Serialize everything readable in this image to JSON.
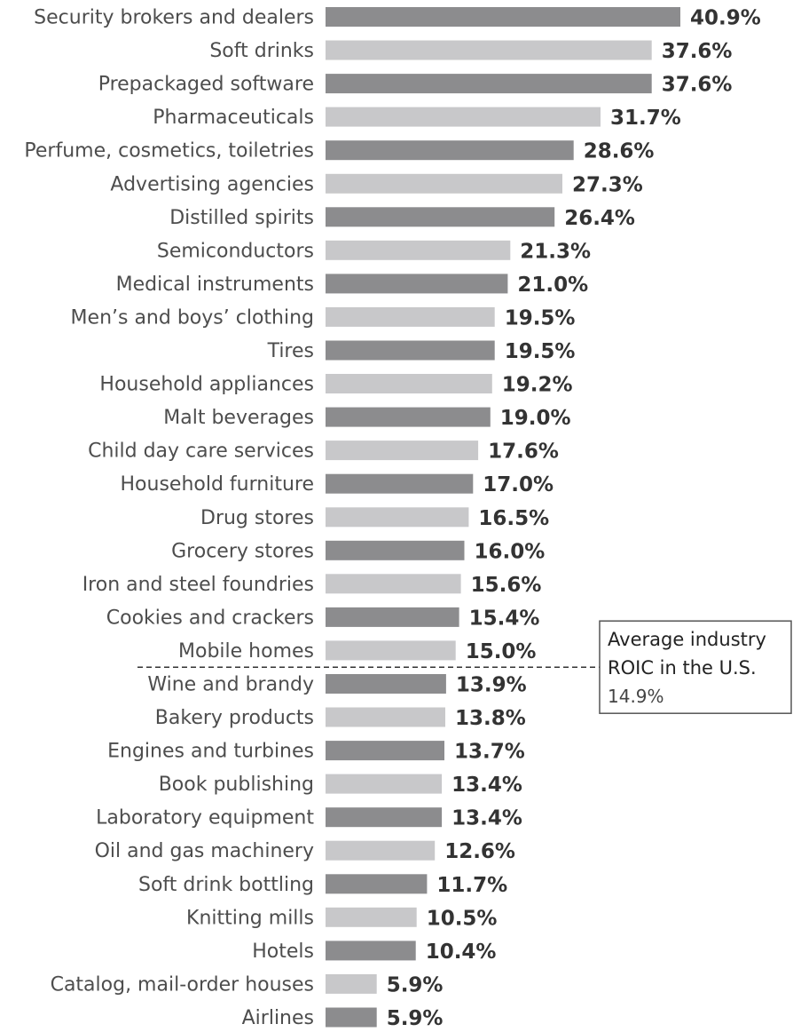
{
  "chart_data": {
    "type": "bar",
    "orientation": "horizontal",
    "value_suffix": "%",
    "categories": [
      "Security brokers and dealers",
      "Soft drinks",
      "Prepackaged software",
      "Pharmaceuticals",
      "Perfume, cosmetics, toiletries",
      "Advertising agencies",
      "Distilled spirits",
      "Semiconductors",
      "Medical instruments",
      "Men’s and boys’ clothing",
      "Tires",
      "Household appliances",
      "Malt beverages",
      "Child day care services",
      "Household furniture",
      "Drug stores",
      "Grocery stores",
      "Iron and steel foundries",
      "Cookies and crackers",
      "Mobile homes",
      "Wine and brandy",
      "Bakery products",
      "Engines and turbines",
      "Book publishing",
      "Laboratory equipment",
      "Oil and gas machinery",
      "Soft drink bottling",
      "Knitting mills",
      "Hotels",
      "Catalog, mail-order houses",
      "Airlines"
    ],
    "values": [
      40.9,
      37.6,
      37.6,
      31.7,
      28.6,
      27.3,
      26.4,
      21.3,
      21.0,
      19.5,
      19.5,
      19.2,
      19.0,
      17.6,
      17.0,
      16.5,
      16.0,
      15.6,
      15.4,
      15.0,
      13.9,
      13.8,
      13.7,
      13.4,
      13.4,
      12.6,
      11.7,
      10.5,
      10.4,
      5.9,
      5.9
    ],
    "value_labels": [
      "40.9%",
      "37.6%",
      "37.6%",
      "31.7%",
      "28.6%",
      "27.3%",
      "26.4%",
      "21.3%",
      "21.0%",
      "19.5%",
      "19.5%",
      "19.2%",
      "19.0%",
      "17.6%",
      "17.0%",
      "16.5%",
      "16.0%",
      "15.6%",
      "15.4%",
      "15.0%",
      "13.9%",
      "13.8%",
      "13.7%",
      "13.4%",
      "13.4%",
      "12.6%",
      "11.7%",
      "10.5%",
      "10.4%",
      "5.9%",
      "5.9%"
    ],
    "colors": {
      "bar_dark": "#8c8c8e",
      "bar_light": "#c8c8ca"
    },
    "reference_line": {
      "value": 14.9,
      "label_line1": "Average industry",
      "label_line2": "ROIC in the U.S.",
      "value_label": "14.9%"
    }
  }
}
